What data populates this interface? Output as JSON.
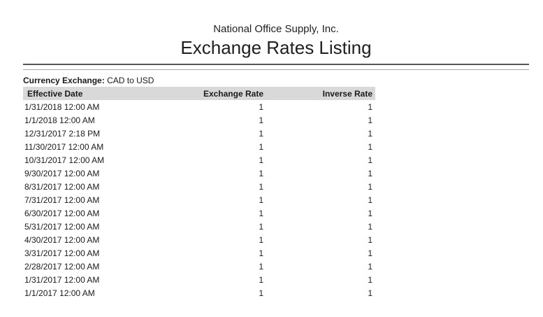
{
  "report": {
    "company": "National Office Supply, Inc.",
    "title": "Exchange Rates Listing",
    "filter_label": "Currency Exchange:",
    "filter_value": "CAD to USD"
  },
  "table": {
    "columns": [
      "Effective Date",
      "Exchange Rate",
      "Inverse Rate"
    ],
    "rows": [
      [
        "1/31/2018 12:00 AM",
        "1",
        "1"
      ],
      [
        "1/1/2018 12:00 AM",
        "1",
        "1"
      ],
      [
        "12/31/2017 2:18 PM",
        "1",
        "1"
      ],
      [
        "11/30/2017 12:00 AM",
        "1",
        "1"
      ],
      [
        "10/31/2017 12:00 AM",
        "1",
        "1"
      ],
      [
        "9/30/2017 12:00 AM",
        "1",
        "1"
      ],
      [
        "8/31/2017 12:00 AM",
        "1",
        "1"
      ],
      [
        "7/31/2017 12:00 AM",
        "1",
        "1"
      ],
      [
        "6/30/2017 12:00 AM",
        "1",
        "1"
      ],
      [
        "5/31/2017 12:00 AM",
        "1",
        "1"
      ],
      [
        "4/30/2017 12:00 AM",
        "1",
        "1"
      ],
      [
        "3/31/2017 12:00 AM",
        "1",
        "1"
      ],
      [
        "2/28/2017 12:00 AM",
        "1",
        "1"
      ],
      [
        "1/31/2017 12:00 AM",
        "1",
        "1"
      ],
      [
        "1/1/2017 12:00 AM",
        "1",
        "1"
      ]
    ]
  },
  "colors": {
    "table_header_bg": "#d9d9d9",
    "rule_dark": "#565656",
    "rule_light": "#a9a9a9",
    "text": "#1a1a1a",
    "background": "#ffffff"
  }
}
